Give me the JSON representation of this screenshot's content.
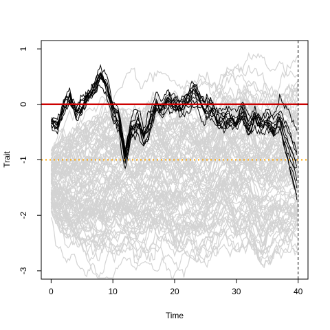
{
  "chart_data": {
    "type": "line",
    "title": "",
    "xlabel": "Time",
    "ylabel": "Trait",
    "xlim": [
      -1.6,
      41.6
    ],
    "ylim": [
      -3.15,
      1.15
    ],
    "x_ticks": [
      0,
      10,
      20,
      30,
      40
    ],
    "y_ticks": [
      1,
      0,
      -1,
      -2,
      -3
    ],
    "x_tick_labels": [
      "0",
      "10",
      "20",
      "30",
      "40"
    ],
    "y_tick_labels": [
      "1",
      "0",
      "-1",
      "-2",
      "-3"
    ],
    "grid": false,
    "legend": "none",
    "series": [
      {
        "style": "grey-lines",
        "color": "#d3d3d3",
        "x": [
          0,
          2,
          4,
          6,
          8,
          10,
          12,
          14,
          16,
          18,
          20,
          22,
          24,
          26,
          28,
          30,
          32,
          34,
          36,
          38,
          40
        ],
        "y_upper": [
          -0.9,
          -0.6,
          -0.4,
          -0.3,
          -0.1,
          -0.05,
          -0.1,
          -0.15,
          0.15,
          0.0,
          0.05,
          0.1,
          0.1,
          0.0,
          0.3,
          0.25,
          0.35,
          0.2,
          0.15,
          0.25,
          0.3
        ],
        "y_lower": [
          -1.9,
          -2.3,
          -2.5,
          -2.6,
          -2.7,
          -2.5,
          -2.4,
          -2.6,
          -2.5,
          -2.4,
          -2.7,
          -2.5,
          -2.6,
          -2.5,
          -2.3,
          -2.5,
          -2.4,
          -2.8,
          -2.5,
          -2.4,
          -2.3
        ],
        "y_center": [
          -1.3,
          -1.4,
          -1.45,
          -1.4,
          -1.4,
          -1.3,
          -1.3,
          -1.35,
          -1.25,
          -1.2,
          -1.2,
          -1.15,
          -1.2,
          -1.2,
          -1.15,
          -1.2,
          -1.1,
          -1.2,
          -1.2,
          -1.1,
          -1.1
        ]
      },
      {
        "style": "black-lines",
        "color": "#000000",
        "x": [
          0,
          1,
          2,
          3,
          4,
          5,
          6,
          7,
          8,
          9,
          10,
          11,
          12,
          13,
          14,
          15,
          16,
          17,
          18,
          19,
          20,
          21,
          22,
          23,
          24,
          25,
          26,
          27,
          28,
          29,
          30,
          31,
          32,
          33,
          34,
          35,
          36,
          37,
          38,
          39,
          40
        ],
        "y": [
          -0.3,
          -0.4,
          -0.05,
          0.1,
          -0.2,
          -0.1,
          0.1,
          0.2,
          0.5,
          0.3,
          -0.1,
          -0.3,
          -0.95,
          -0.4,
          -0.3,
          -0.6,
          -0.4,
          0.0,
          -0.05,
          0.05,
          0.0,
          -0.05,
          0.05,
          0.2,
          0.1,
          -0.1,
          -0.1,
          -0.3,
          -0.25,
          -0.2,
          -0.3,
          -0.1,
          -0.4,
          -0.2,
          -0.35,
          -0.3,
          -0.4,
          -0.2,
          -0.6,
          -0.9,
          -1.3
        ]
      },
      {
        "style": "horizontal-line",
        "color": "#cc0000",
        "y": 0
      },
      {
        "style": "horizontal-line-dotted",
        "color": "#ffa500",
        "y": -1
      },
      {
        "style": "vertical-line-dashed",
        "color": "#000000",
        "x": 40
      }
    ]
  }
}
